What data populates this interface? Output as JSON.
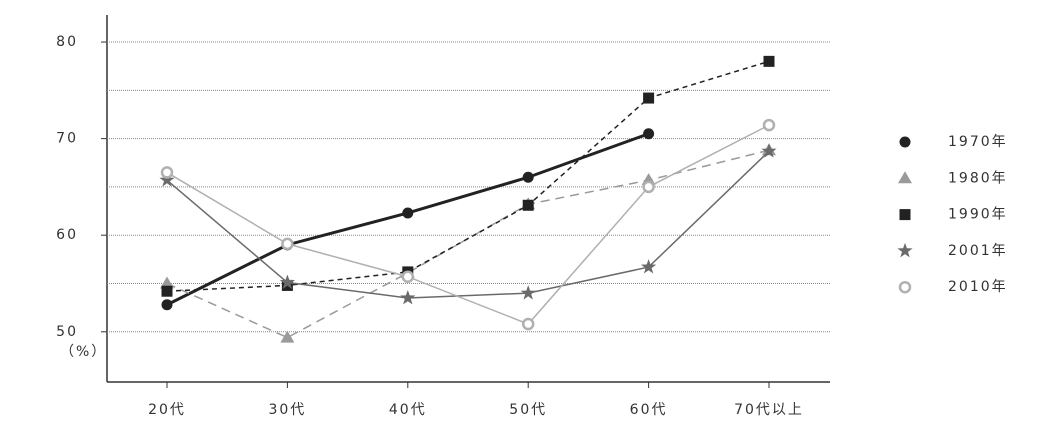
{
  "chart_data": {
    "type": "line",
    "y_label": "（%）",
    "categories": [
      "20代",
      "30代",
      "40代",
      "50代",
      "60代",
      "70代以上"
    ],
    "ylim": [
      44.8,
      82.8
    ],
    "yticks": [
      50,
      60,
      70,
      80
    ],
    "ygrid": [
      50,
      55,
      60,
      65,
      70,
      75,
      80
    ],
    "series": [
      {
        "name": "1970年",
        "color": "#222222",
        "marker": "circle",
        "dash": "solid",
        "width": 3,
        "values": [
          52.8,
          59.0,
          62.3,
          66.0,
          70.5,
          null
        ]
      },
      {
        "name": "1980年",
        "color": "#9a9a9a",
        "marker": "triangle",
        "dash": "long",
        "width": 1.5,
        "values": [
          55.0,
          49.4,
          56.1,
          63.2,
          65.7,
          68.8
        ]
      },
      {
        "name": "1990年",
        "color": "#222222",
        "marker": "square",
        "dash": "short",
        "width": 1.5,
        "values": [
          54.2,
          54.8,
          56.2,
          63.1,
          74.2,
          78.0
        ]
      },
      {
        "name": "2001年",
        "color": "#6a6a6a",
        "marker": "star",
        "dash": "solid",
        "width": 1.5,
        "values": [
          65.7,
          55.1,
          53.5,
          54.0,
          56.7,
          68.7
        ]
      },
      {
        "name": "2010年",
        "color": "#b0b0b0",
        "marker": "open-circle",
        "dash": "solid",
        "width": 1.5,
        "values": [
          66.5,
          59.1,
          55.7,
          50.8,
          65.0,
          71.4
        ]
      }
    ]
  }
}
